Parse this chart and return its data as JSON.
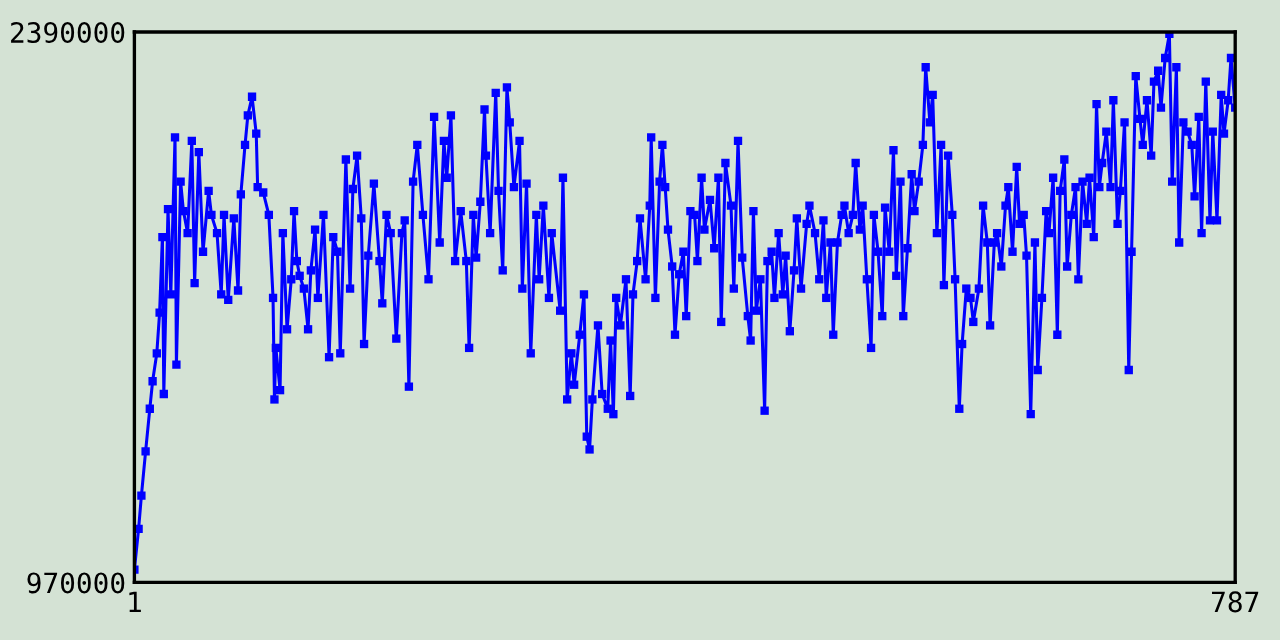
{
  "chart_data": {
    "type": "line",
    "xlim": [
      1,
      787
    ],
    "xticks": [
      1,
      787
    ],
    "ylim": [
      970000,
      2390000
    ],
    "yticks": [
      970000,
      2390000
    ],
    "marker": "square",
    "line_style": "solid",
    "x": [
      1,
      4,
      6,
      9,
      12,
      14,
      17,
      19,
      21,
      22,
      25,
      27,
      30,
      31,
      34,
      36,
      39,
      42,
      44,
      47,
      50,
      54,
      56,
      60,
      63,
      65,
      68,
      72,
      75,
      77,
      80,
      82,
      85,
      88,
      89,
      93,
      97,
      100,
      101,
      102,
      105,
      107,
      110,
      113,
      115,
      117,
      119,
      122,
      125,
      127,
      130,
      132,
      136,
      140,
      143,
      146,
      148,
      152,
      155,
      157,
      160,
      163,
      165,
      168,
      172,
      176,
      178,
      181,
      184,
      188,
      192,
      194,
      197,
      200,
      203,
      207,
      211,
      215,
      219,
      222,
      224,
      227,
      230,
      234,
      238,
      240,
      243,
      245,
      248,
      251,
      252,
      255,
      259,
      261,
      264,
      267,
      269,
      272,
      276,
      278,
      281,
      284,
      288,
      290,
      293,
      297,
      299,
      305,
      307,
      310,
      313,
      315,
      319,
      322,
      324,
      326,
      328,
      332,
      335,
      339,
      341,
      343,
      345,
      348,
      352,
      355,
      357,
      360,
      362,
      366,
      369,
      370,
      373,
      376,
      378,
      380,
      382,
      385,
      387,
      390,
      393,
      395,
      398,
      401,
      403,
      406,
      408,
      412,
      415,
      418,
      420,
      423,
      427,
      429,
      432,
      435,
      439,
      441,
      443,
      445,
      448,
      451,
      453,
      456,
      458,
      461,
      464,
      466,
      469,
      472,
      474,
      477,
      481,
      483,
      487,
      490,
      493,
      495,
      498,
      500,
      503,
      506,
      508,
      511,
      514,
      516,
      519,
      521,
      524,
      527,
      529,
      532,
      535,
      537,
      540,
      543,
      545,
      548,
      550,
      553,
      556,
      558,
      561,
      564,
      566,
      569,
      571,
      574,
      577,
      579,
      582,
      585,
      587,
      590,
      592,
      595,
      598,
      600,
      604,
      607,
      610,
      612,
      615,
      617,
      620,
      623,
      625,
      628,
      631,
      633,
      636,
      638,
      641,
      644,
      646,
      649,
      652,
      654,
      657,
      660,
      662,
      665,
      667,
      670,
      673,
      675,
      678,
      681,
      683,
      686,
      688,
      690,
      692,
      695,
      698,
      700,
      703,
      705,
      708,
      711,
      713,
      716,
      719,
      721,
      724,
      727,
      729,
      732,
      734,
      737,
      740,
      742,
      745,
      747,
      750,
      753,
      756,
      758,
      761,
      763,
      766,
      769,
      771,
      774,
      777,
      779,
      782,
      784,
      787
    ],
    "series": [
      {
        "color": "#0000ff",
        "values": [
          1003000,
          1108000,
          1194000,
          1308000,
          1418000,
          1489000,
          1561000,
          1666000,
          1861000,
          1456000,
          1933000,
          1713000,
          2118000,
          1532000,
          2004000,
          1928000,
          1871000,
          2109000,
          1742000,
          2080000,
          1823000,
          1980000,
          1918000,
          1871000,
          1713000,
          1918000,
          1699000,
          1909000,
          1723000,
          1971000,
          2099000,
          2175000,
          2223000,
          2128000,
          1990000,
          1976000,
          1918000,
          1704000,
          1442000,
          1575000,
          1466000,
          1871000,
          1623000,
          1752000,
          1928000,
          1799000,
          1761000,
          1728000,
          1623000,
          1775000,
          1880000,
          1704000,
          1918000,
          1551000,
          1861000,
          1823000,
          1561000,
          2061000,
          1728000,
          1985000,
          2071000,
          1909000,
          1585000,
          1813000,
          1999000,
          1799000,
          1690000,
          1918000,
          1871000,
          1599000,
          1871000,
          1904000,
          1475000,
          2004000,
          2099000,
          1918000,
          1752000,
          2171000,
          1847000,
          2109000,
          2014000,
          2175000,
          1799000,
          1928000,
          1799000,
          1575000,
          1918000,
          1808000,
          1952000,
          2190000,
          2071000,
          1871000,
          2233000,
          1980000,
          1775000,
          2247000,
          2157000,
          1990000,
          2109000,
          1728000,
          1999000,
          1561000,
          1918000,
          1752000,
          1942000,
          1704000,
          1871000,
          1671000,
          2014000,
          1442000,
          1561000,
          1480000,
          1609000,
          1713000,
          1346000,
          1313000,
          1442000,
          1633000,
          1456000,
          1418000,
          1594000,
          1404000,
          1704000,
          1633000,
          1752000,
          1451000,
          1713000,
          1799000,
          1909000,
          1752000,
          1942000,
          2118000,
          1704000,
          2004000,
          2099000,
          1990000,
          1880000,
          1785000,
          1609000,
          1765000,
          1823000,
          1657000,
          1928000,
          1918000,
          1799000,
          2014000,
          1880000,
          1957000,
          1832000,
          2014000,
          1642000,
          2052000,
          1942000,
          1728000,
          2109000,
          1808000,
          1657000,
          1594000,
          1928000,
          1671000,
          1752000,
          1413000,
          1799000,
          1823000,
          1704000,
          1871000,
          1713000,
          1813000,
          1618000,
          1775000,
          1909000,
          1728000,
          1895000,
          1942000,
          1871000,
          1752000,
          1904000,
          1704000,
          1847000,
          1609000,
          1847000,
          1918000,
          1942000,
          1871000,
          1918000,
          2052000,
          1880000,
          1942000,
          1752000,
          1575000,
          1918000,
          1823000,
          1657000,
          1937000,
          1823000,
          2085000,
          1761000,
          2004000,
          1657000,
          1832000,
          2023000,
          1928000,
          2004000,
          2099000,
          2299000,
          2157000,
          2228000,
          1871000,
          2099000,
          1737000,
          2071000,
          1918000,
          1752000,
          1418000,
          1585000,
          1728000,
          1704000,
          1642000,
          1728000,
          1942000,
          1847000,
          1633000,
          1847000,
          1871000,
          1785000,
          1942000,
          1990000,
          1823000,
          2042000,
          1895000,
          1918000,
          1813000,
          1404000,
          1847000,
          1518000,
          1704000,
          1928000,
          1871000,
          2014000,
          1609000,
          1980000,
          2061000,
          1785000,
          1918000,
          1990000,
          1752000,
          2004000,
          1895000,
          2014000,
          1861000,
          2204000,
          1990000,
          2052000,
          2133000,
          1990000,
          2214000,
          1895000,
          1980000,
          2157000,
          1518000,
          1823000,
          2276000,
          2166000,
          2099000,
          2214000,
          2071000,
          2262000,
          2290000,
          2195000,
          2323000,
          2385000,
          2004000,
          2299000,
          1847000,
          2157000,
          2133000,
          2099000,
          1966000,
          2171000,
          1871000,
          2262000,
          1904000,
          2133000,
          1904000,
          2228000,
          2128000,
          2214000,
          2323000,
          2195000
        ]
      }
    ]
  }
}
